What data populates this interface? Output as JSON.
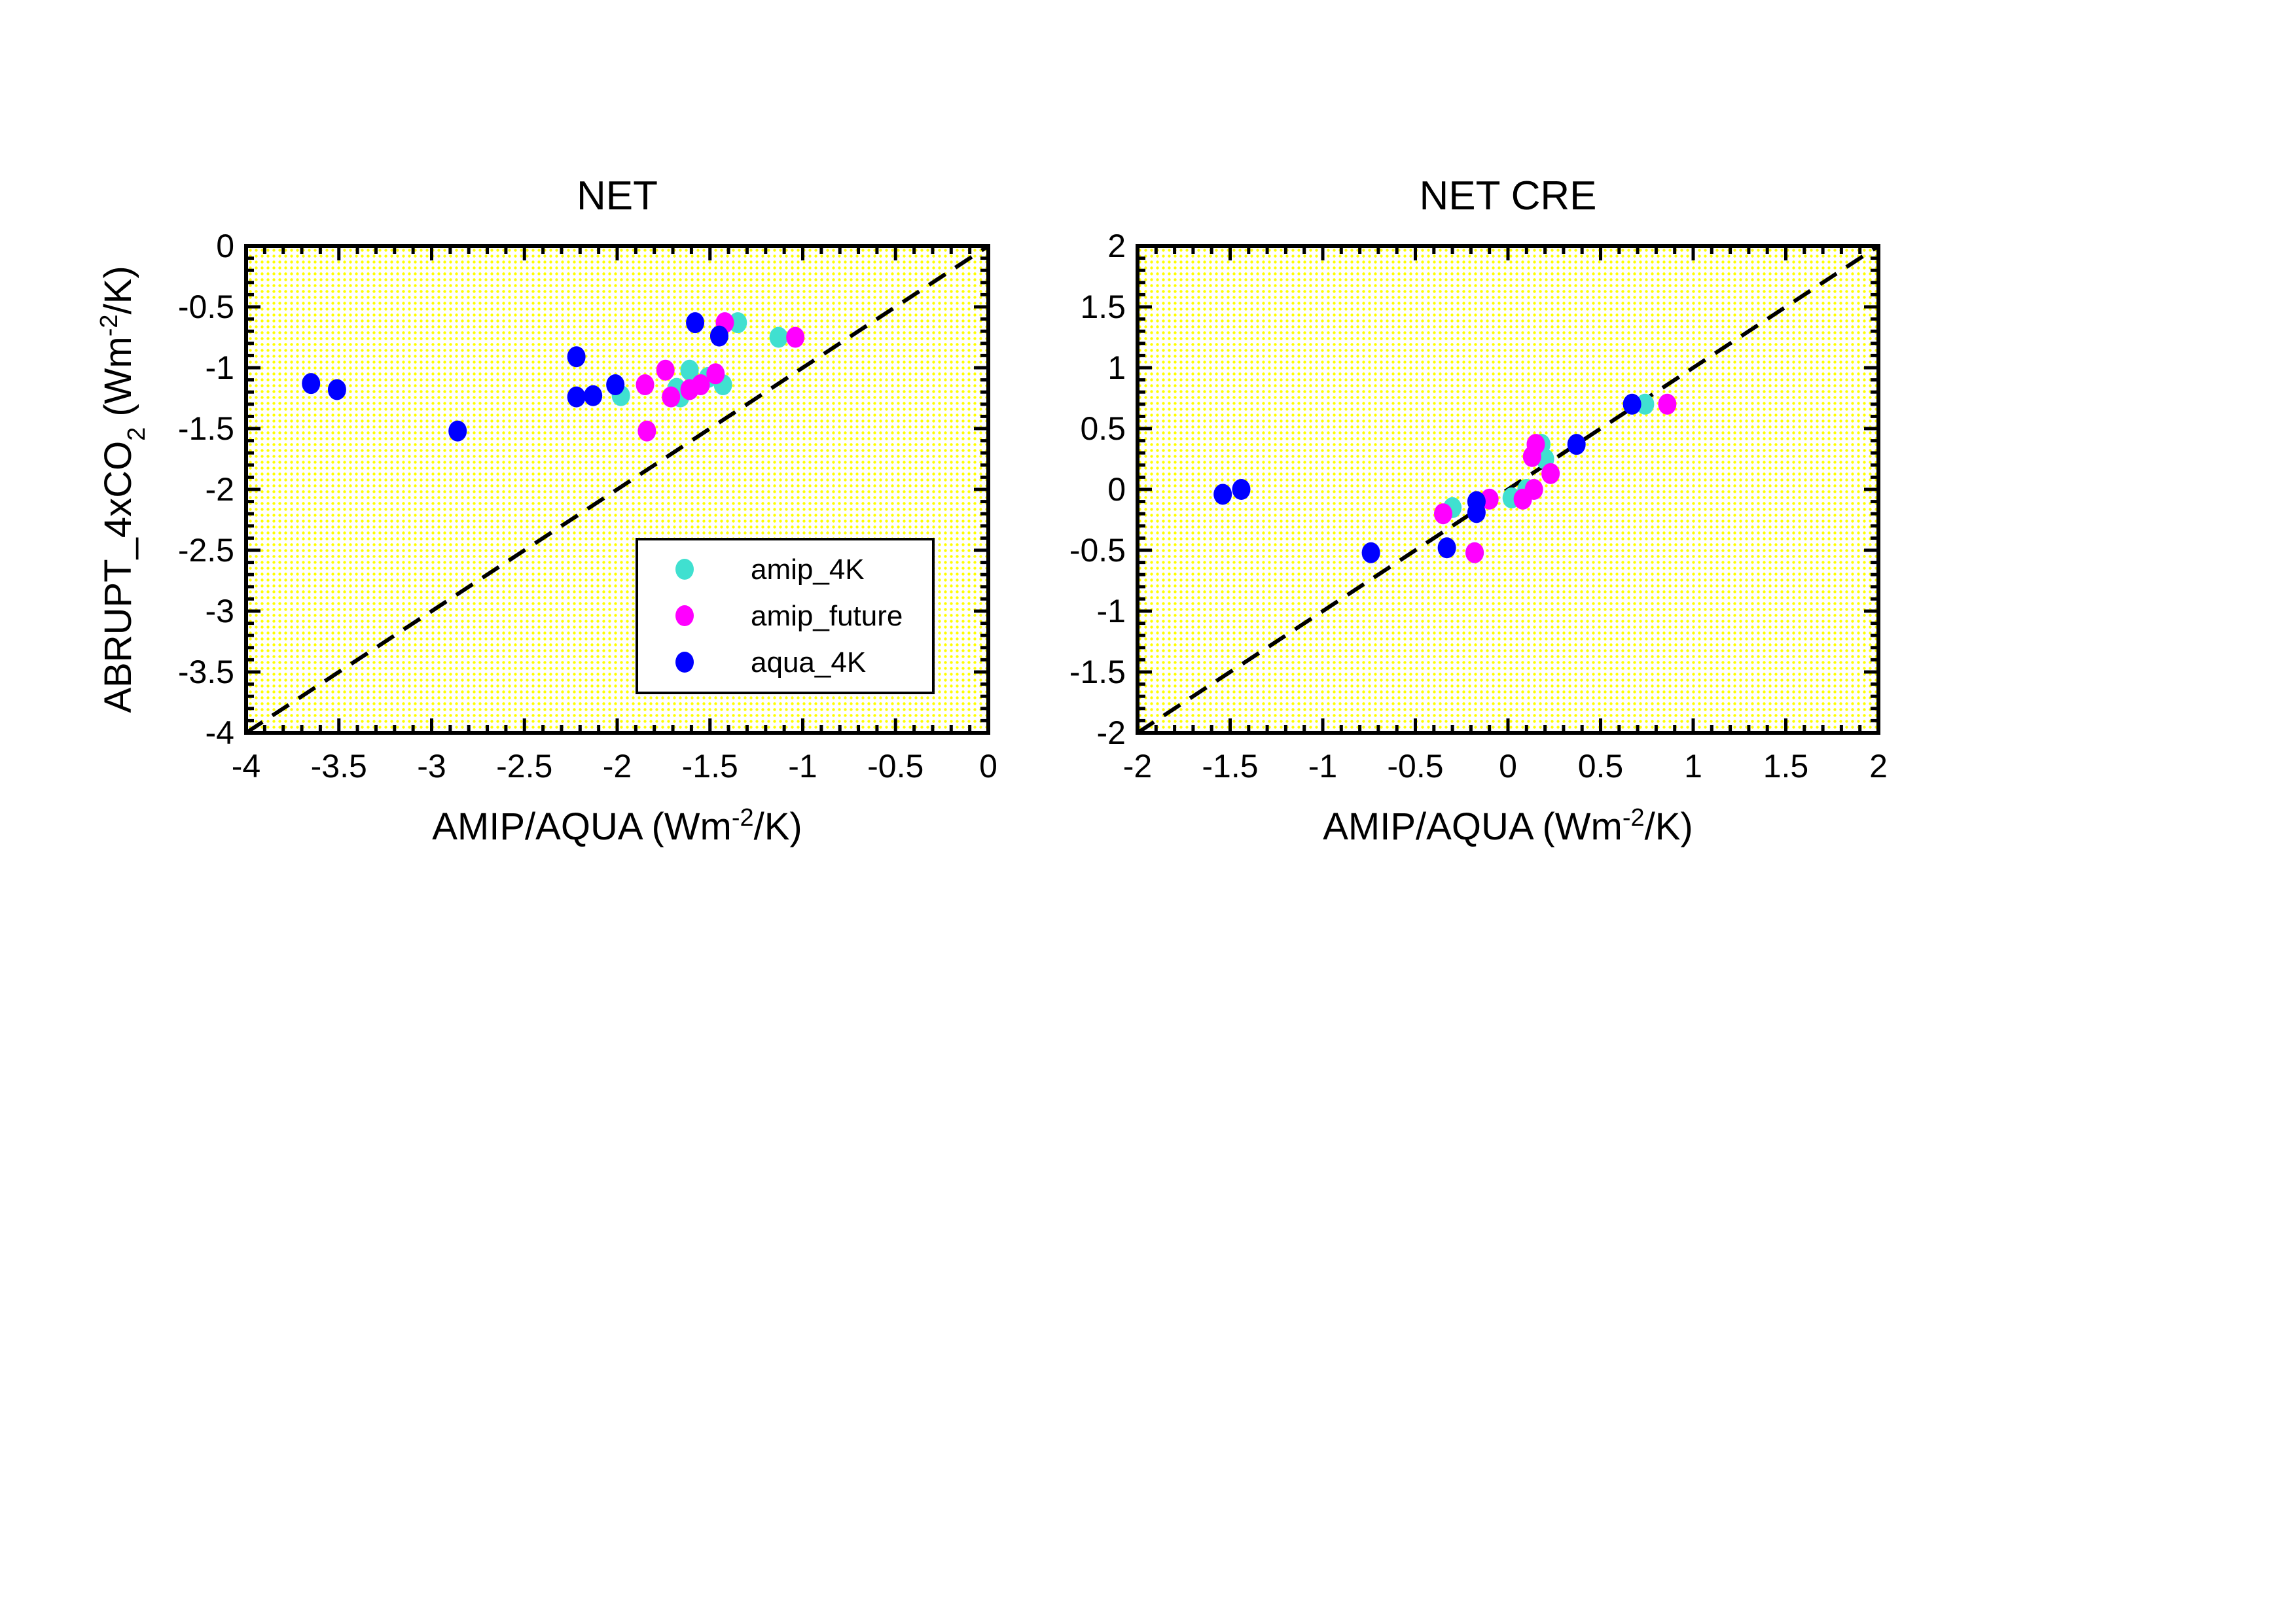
{
  "colors": {
    "amip_4K": "#40E0D0",
    "amip_future": "#FF00FF",
    "aqua_4K": "#0000FF",
    "background_dots": "#FFFF00"
  },
  "chart_data": [
    {
      "type": "scatter",
      "title": "NET",
      "xlabel": "AMIP/AQUA (Wm^-2/K)",
      "ylabel": "ABRUPT_4xCO2 (Wm^-2/K)",
      "xlim": [
        -4,
        0
      ],
      "ylim": [
        -4,
        0
      ],
      "xticks": [
        "-4",
        "-3.5",
        "-3",
        "-2.5",
        "-2",
        "-1.5",
        "-1",
        "-0.5",
        "0"
      ],
      "yticks": [
        "-4",
        "-3.5",
        "-3",
        "-2.5",
        "-2",
        "-1.5",
        "-1",
        "-0.5",
        "0"
      ],
      "reference_line": "1:1 dashed",
      "legend": {
        "placement": "lower-right",
        "entries": [
          "amip_4K",
          "amip_future",
          "aqua_4K"
        ]
      },
      "series": [
        {
          "name": "amip_4K",
          "x": [
            -1.98,
            -1.68,
            -1.61,
            -1.51,
            -1.43,
            -1.35,
            -1.13,
            -1.66
          ],
          "y": [
            -1.23,
            -1.17,
            -1.02,
            -1.08,
            -1.14,
            -0.63,
            -0.75,
            -1.24
          ]
        },
        {
          "name": "amip_future",
          "x": [
            -1.85,
            -1.84,
            -1.74,
            -1.71,
            -1.61,
            -1.55,
            -1.47,
            -1.42,
            -1.04
          ],
          "y": [
            -1.14,
            -1.52,
            -1.02,
            -1.24,
            -1.18,
            -1.14,
            -1.05,
            -0.63,
            -0.75
          ]
        },
        {
          "name": "aqua_4K",
          "x": [
            -3.65,
            -3.51,
            -2.86,
            -2.22,
            -2.22,
            -2.13,
            -2.01,
            -1.58,
            -1.45
          ],
          "y": [
            -1.13,
            -1.18,
            -1.52,
            -0.91,
            -1.24,
            -1.23,
            -1.14,
            -0.63,
            -0.74
          ]
        }
      ]
    },
    {
      "type": "scatter",
      "title": "NET CRE",
      "xlabel": "AMIP/AQUA (Wm^-2/K)",
      "ylabel": "",
      "xlim": [
        -2,
        2
      ],
      "ylim": [
        -2,
        2
      ],
      "xticks": [
        "-2",
        "-1.5",
        "-1",
        "-0.5",
        "0",
        "0.5",
        "1",
        "1.5",
        "2"
      ],
      "yticks": [
        "-2",
        "-1.5",
        "-1",
        "-0.5",
        "0",
        "0.5",
        "1",
        "1.5",
        "2"
      ],
      "reference_line": "1:1 dashed",
      "series": [
        {
          "name": "amip_4K",
          "x": [
            -0.3,
            -0.18,
            0.02,
            0.1,
            0.18,
            0.2,
            0.74
          ],
          "y": [
            -0.15,
            -0.52,
            -0.07,
            0.0,
            0.37,
            0.25,
            0.7
          ]
        },
        {
          "name": "amip_future",
          "x": [
            -0.35,
            -0.18,
            -0.1,
            0.08,
            0.14,
            0.13,
            0.15,
            0.23,
            0.86
          ],
          "y": [
            -0.2,
            -0.52,
            -0.08,
            -0.08,
            0.0,
            0.27,
            0.37,
            0.13,
            0.7
          ]
        },
        {
          "name": "aqua_4K",
          "x": [
            -1.54,
            -1.44,
            -0.74,
            -0.33,
            -0.17,
            -0.17,
            0.37,
            0.67
          ],
          "y": [
            -0.04,
            0.0,
            -0.52,
            -0.48,
            -0.1,
            -0.19,
            0.37,
            0.7
          ]
        }
      ]
    }
  ]
}
